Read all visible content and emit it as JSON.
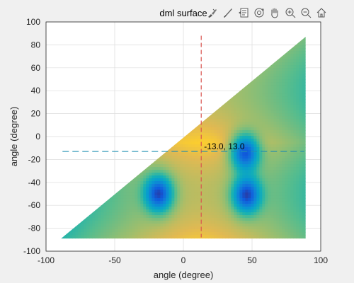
{
  "chart_data": {
    "type": "heatmap",
    "title": "dml surface",
    "xlabel": "angle (degree)",
    "ylabel": "angle (degree)",
    "xlim": [
      -100,
      100
    ],
    "ylim": [
      -100,
      100
    ],
    "xticks": [
      "-100",
      "-50",
      "0",
      "50",
      "100"
    ],
    "yticks": [
      "100",
      "80",
      "60",
      "40",
      "20",
      "0",
      "-20",
      "-40",
      "-60",
      "-80",
      "-100"
    ],
    "grid": true,
    "colormap": "parula",
    "surface_domain": {
      "x": [
        -89,
        89
      ],
      "y": [
        -89,
        87
      ],
      "mask": "y <= x"
    },
    "minima": [
      {
        "x": -18,
        "y": -50
      },
      {
        "x": 46,
        "y": -51
      },
      {
        "x": 45,
        "y": -14
      }
    ],
    "crosshair": {
      "x": 13,
      "y": -13,
      "label": "-13.0, 13.0",
      "vertical_color": "#d9534f",
      "horizontal_color": "#1f8fb0"
    }
  },
  "toolbar": {
    "tools": [
      "brush-icon",
      "paintbrush-icon",
      "datatip-icon",
      "rotate-3d-icon",
      "pan-hand-icon",
      "zoom-in-icon",
      "zoom-out-icon",
      "home-icon"
    ]
  }
}
